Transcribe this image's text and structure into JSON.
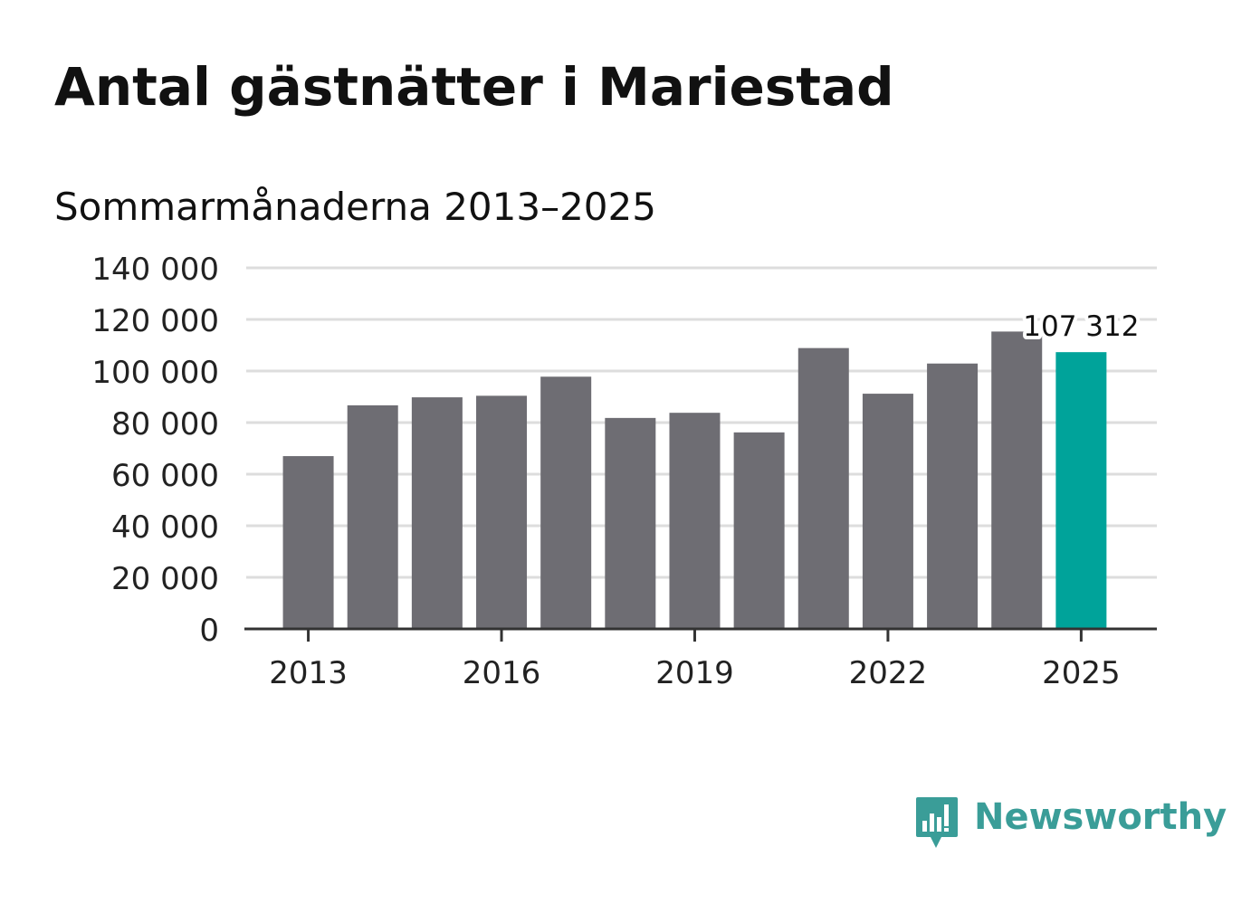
{
  "title": "Antal gästnätter i Mariestad",
  "subtitle": "Sommarmånaderna 2013–2025",
  "brand": {
    "name": "Newsworthy",
    "logo_icon": "newsworthy-chart-bubble-icon",
    "color": "#3a9d98"
  },
  "colors": {
    "bar": "#6e6d73",
    "highlight": "#00a39a",
    "grid": "#dddddd",
    "axis": "#333333",
    "text": "#222222"
  },
  "chart_data": {
    "type": "bar",
    "title": "Antal gästnätter i Mariestad",
    "subtitle": "Sommarmånaderna 2013–2025",
    "categories": [
      "2013",
      "2014",
      "2015",
      "2016",
      "2017",
      "2018",
      "2019",
      "2020",
      "2021",
      "2022",
      "2023",
      "2024",
      "2025"
    ],
    "values": [
      67000,
      86700,
      89800,
      90400,
      97800,
      81800,
      83800,
      76200,
      108900,
      91200,
      102900,
      115300,
      107312
    ],
    "highlight_index": 12,
    "highlight_label": "107 312",
    "ylim": [
      0,
      140000
    ],
    "yticks": [
      0,
      20000,
      40000,
      60000,
      80000,
      100000,
      120000,
      140000
    ],
    "ytick_labels": [
      "0",
      "20 000",
      "40 000",
      "60 000",
      "80 000",
      "100 000",
      "120 000",
      "140 000"
    ],
    "xtick_labels": [
      "2013",
      "2016",
      "2019",
      "2022",
      "2025"
    ],
    "grid": true,
    "legend": "none"
  }
}
